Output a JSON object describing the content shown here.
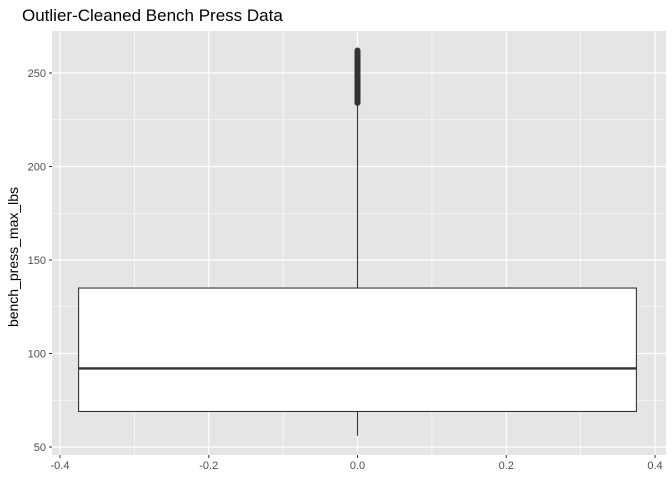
{
  "chart_data": {
    "type": "boxplot",
    "title": "Outlier-Cleaned Bench Press Data",
    "xlabel": "",
    "ylabel": "bench_press_max_lbs",
    "xlim": [
      -0.4,
      0.4
    ],
    "ylim": [
      50,
      262
    ],
    "x_ticks": [
      -0.4,
      -0.2,
      0.0,
      0.2,
      0.4
    ],
    "x_tick_labels": [
      "-0.4",
      "-0.2",
      "0.0",
      "0.2",
      "0.4"
    ],
    "y_ticks": [
      50,
      100,
      150,
      200,
      250
    ],
    "y_tick_labels": [
      "50",
      "100",
      "150",
      "200",
      "250"
    ],
    "grid": true,
    "legend": "none",
    "box": {
      "x_center": 0.0,
      "x_min": -0.375,
      "x_max": 0.375,
      "whisker_low": 56,
      "q1": 69,
      "median": 92,
      "q3": 135,
      "whisker_high": 234
    },
    "outliers": {
      "x": 0.0,
      "y_from": 234,
      "y_to": 262
    },
    "colors": {
      "panel_background": "#e5e5e5",
      "grid": "#ffffff",
      "box_fill": "#ffffff",
      "box_line": "#333333",
      "outlier": "#333333"
    }
  }
}
